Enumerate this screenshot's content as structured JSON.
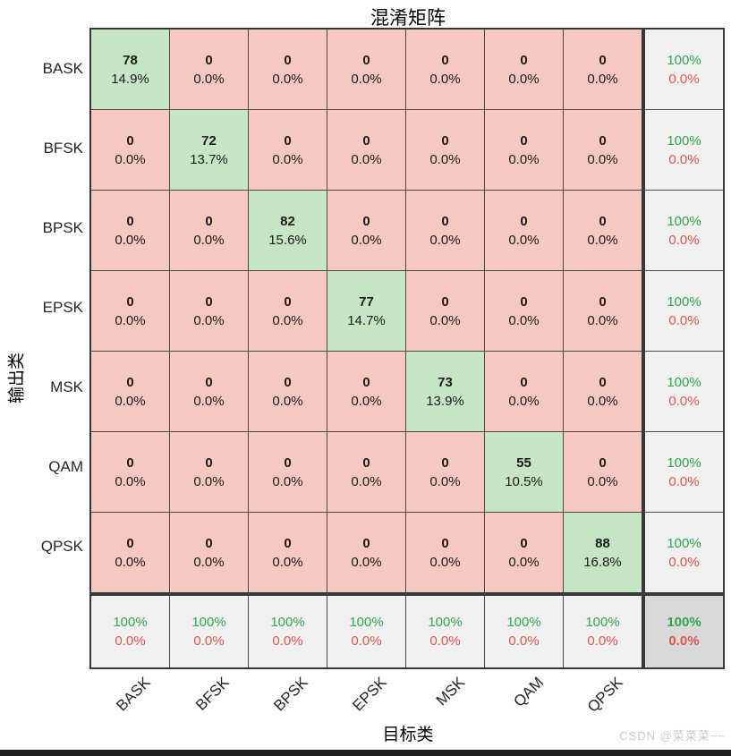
{
  "title": "混淆矩阵",
  "axes": {
    "y_label": "输出类",
    "x_label": "目标类"
  },
  "watermark": "CSDN @菜菜菜~~",
  "colors": {
    "diagonal_bg": "#c5e5c5",
    "offdiagonal_bg": "#f7c7c2",
    "summary_bg": "#f1f1f1",
    "corner_bg": "#d9d9d9",
    "green_text": "#2fa84c",
    "red_text": "#e0544a",
    "grid_thin": "#4a4a4a",
    "grid_thick": "#383838"
  },
  "chart_data": {
    "type": "heatmap",
    "subtype": "confusion_matrix",
    "title": "混淆矩阵",
    "xlabel": "目标类",
    "ylabel": "输出类",
    "classes": [
      "BASK",
      "BFSK",
      "BPSK",
      "EPSK",
      "MSK",
      "QAM",
      "QPSK"
    ],
    "counts": [
      [
        78,
        0,
        0,
        0,
        0,
        0,
        0
      ],
      [
        0,
        72,
        0,
        0,
        0,
        0,
        0
      ],
      [
        0,
        0,
        82,
        0,
        0,
        0,
        0
      ],
      [
        0,
        0,
        0,
        77,
        0,
        0,
        0
      ],
      [
        0,
        0,
        0,
        0,
        73,
        0,
        0
      ],
      [
        0,
        0,
        0,
        0,
        0,
        55,
        0
      ],
      [
        0,
        0,
        0,
        0,
        0,
        0,
        88
      ]
    ],
    "percents": [
      [
        "14.9%",
        "0.0%",
        "0.0%",
        "0.0%",
        "0.0%",
        "0.0%",
        "0.0%"
      ],
      [
        "0.0%",
        "13.7%",
        "0.0%",
        "0.0%",
        "0.0%",
        "0.0%",
        "0.0%"
      ],
      [
        "0.0%",
        "0.0%",
        "15.6%",
        "0.0%",
        "0.0%",
        "0.0%",
        "0.0%"
      ],
      [
        "0.0%",
        "0.0%",
        "0.0%",
        "14.7%",
        "0.0%",
        "0.0%",
        "0.0%"
      ],
      [
        "0.0%",
        "0.0%",
        "0.0%",
        "0.0%",
        "13.9%",
        "0.0%",
        "0.0%"
      ],
      [
        "0.0%",
        "0.0%",
        "0.0%",
        "0.0%",
        "0.0%",
        "10.5%",
        "0.0%"
      ],
      [
        "0.0%",
        "0.0%",
        "0.0%",
        "0.0%",
        "0.0%",
        "0.0%",
        "16.8%"
      ]
    ],
    "row_summary": [
      [
        "100%",
        "0.0%"
      ],
      [
        "100%",
        "0.0%"
      ],
      [
        "100%",
        "0.0%"
      ],
      [
        "100%",
        "0.0%"
      ],
      [
        "100%",
        "0.0%"
      ],
      [
        "100%",
        "0.0%"
      ],
      [
        "100%",
        "0.0%"
      ]
    ],
    "col_summary": [
      [
        "100%",
        "0.0%"
      ],
      [
        "100%",
        "0.0%"
      ],
      [
        "100%",
        "0.0%"
      ],
      [
        "100%",
        "0.0%"
      ],
      [
        "100%",
        "0.0%"
      ],
      [
        "100%",
        "0.0%"
      ],
      [
        "100%",
        "0.0%"
      ]
    ],
    "corner": [
      "100%",
      "0.0%"
    ]
  }
}
